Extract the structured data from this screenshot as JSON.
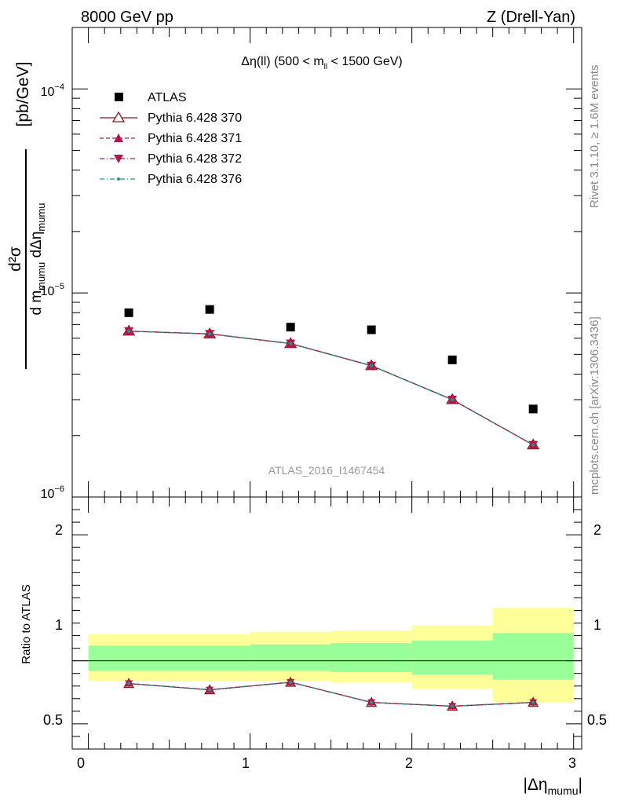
{
  "header": {
    "left": "8000 GeV pp",
    "right": "Z (Drell-Yan)"
  },
  "side_labels": {
    "rivet": "Rivet 3.1.10, ≥ 1.6M events",
    "mcplots": "mcplots.cern.ch [arXiv:1306.3436]"
  },
  "watermark": "ATLAS_2016_I1467454",
  "chart_data": [
    {
      "type": "scatter",
      "title": "Δη(ll) (500 < m_ll < 1500 GeV)",
      "title_parts": {
        "main": "Δη(ll) (500 < m",
        "sub": "ll",
        "tail": " < 1500 GeV)"
      },
      "ylabel_parts": {
        "num": "d²σ",
        "den_a": "d m",
        "den_sub1": "mumu",
        "den_b": " dΔη",
        "den_sub2": "mumu",
        "unit": "[pb/GeV]"
      },
      "yscale": "log",
      "ylim": [
        1e-06,
        0.0002
      ],
      "xlim": [
        -0.1,
        3.05
      ],
      "y_tick_labels": [
        {
          "value": 1e-06,
          "base": "10",
          "exp": "−6"
        },
        {
          "value": 1e-05,
          "base": "10",
          "exp": "−5"
        },
        {
          "value": 0.0001,
          "base": "10",
          "exp": "−4"
        }
      ],
      "legend_placement": "top-left",
      "x": [
        0.25,
        0.75,
        1.25,
        1.75,
        2.25,
        2.75
      ],
      "x_bins": [
        [
          0,
          0.5
        ],
        [
          0.5,
          1.0
        ],
        [
          1.0,
          1.5
        ],
        [
          1.5,
          2.0
        ],
        [
          2.0,
          2.5
        ],
        [
          2.5,
          3.0
        ]
      ],
      "series": [
        {
          "name": "ATLAS",
          "values": [
            8e-06,
            8.3e-06,
            6.8e-06,
            6.6e-06,
            4.7e-06,
            2.7e-06
          ],
          "color": "#000000",
          "marker": "square",
          "line": "none"
        },
        {
          "name": "Pythia 6.428 370",
          "values": [
            6.5e-06,
            6.3e-06,
            5.65e-06,
            4.4e-06,
            3e-06,
            1.8e-06
          ],
          "color": "#8b1a1a",
          "marker": "triangle-up-open",
          "line": "solid"
        },
        {
          "name": "Pythia 6.428 371",
          "values": [
            6.5e-06,
            6.3e-06,
            5.65e-06,
            4.4e-06,
            3e-06,
            1.8e-06
          ],
          "color": "#b3164d",
          "marker": "triangle-up",
          "line": "dashed"
        },
        {
          "name": "Pythia 6.428 372",
          "values": [
            6.5e-06,
            6.3e-06,
            5.65e-06,
            4.4e-06,
            3e-06,
            1.8e-06
          ],
          "color": "#b3164d",
          "marker": "triangle-down",
          "line": "dashdot"
        },
        {
          "name": "Pythia 6.428 376",
          "values": [
            6.5e-06,
            6.3e-06,
            5.65e-06,
            4.4e-06,
            3e-06,
            1.8e-06
          ],
          "color": "#1a9a8a",
          "marker": "dot",
          "line": "dashdot"
        }
      ]
    },
    {
      "type": "line",
      "ylabel": "Ratio to ATLAS",
      "xlabel": "|Δηmumu|",
      "xlabel_parts": {
        "main": "|Δη",
        "sub": "mumu",
        "tail": "|"
      },
      "xlim": [
        -0.1,
        3.05
      ],
      "ylim": [
        0.3,
        2.3
      ],
      "x_tick_labels": [
        "0",
        "1",
        "2",
        "3"
      ],
      "y_tick_labels": [
        "0.5",
        "1",
        "2"
      ],
      "reference_line": 1.0,
      "bands": [
        {
          "x_range": [
            0.0,
            1.0
          ],
          "yellow": [
            0.84,
            1.21
          ],
          "green": [
            0.92,
            1.12
          ]
        },
        {
          "x_range": [
            1.0,
            1.5
          ],
          "yellow": [
            0.84,
            1.23
          ],
          "green": [
            0.92,
            1.13
          ]
        },
        {
          "x_range": [
            1.5,
            2.0
          ],
          "yellow": [
            0.83,
            1.24
          ],
          "green": [
            0.91,
            1.14
          ]
        },
        {
          "x_range": [
            2.0,
            2.5
          ],
          "yellow": [
            0.78,
            1.28
          ],
          "green": [
            0.89,
            1.16
          ]
        },
        {
          "x_range": [
            2.5,
            3.0
          ],
          "yellow": [
            0.67,
            1.42
          ],
          "green": [
            0.85,
            1.22
          ]
        }
      ],
      "x": [
        0.25,
        0.75,
        1.25,
        1.75,
        2.25,
        2.75
      ],
      "series": [
        {
          "name": "Pythia 6.428 370",
          "values": [
            0.82,
            0.77,
            0.83,
            0.67,
            0.64,
            0.67
          ],
          "color": "#8b1a1a"
        },
        {
          "name": "Pythia 6.428 371",
          "values": [
            0.82,
            0.77,
            0.83,
            0.67,
            0.64,
            0.67
          ],
          "color": "#b3164d"
        },
        {
          "name": "Pythia 6.428 372",
          "values": [
            0.82,
            0.77,
            0.83,
            0.67,
            0.64,
            0.67
          ],
          "color": "#b3164d"
        },
        {
          "name": "Pythia 6.428 376",
          "values": [
            0.82,
            0.77,
            0.83,
            0.67,
            0.64,
            0.67
          ],
          "color": "#1a9a8a"
        }
      ]
    }
  ]
}
